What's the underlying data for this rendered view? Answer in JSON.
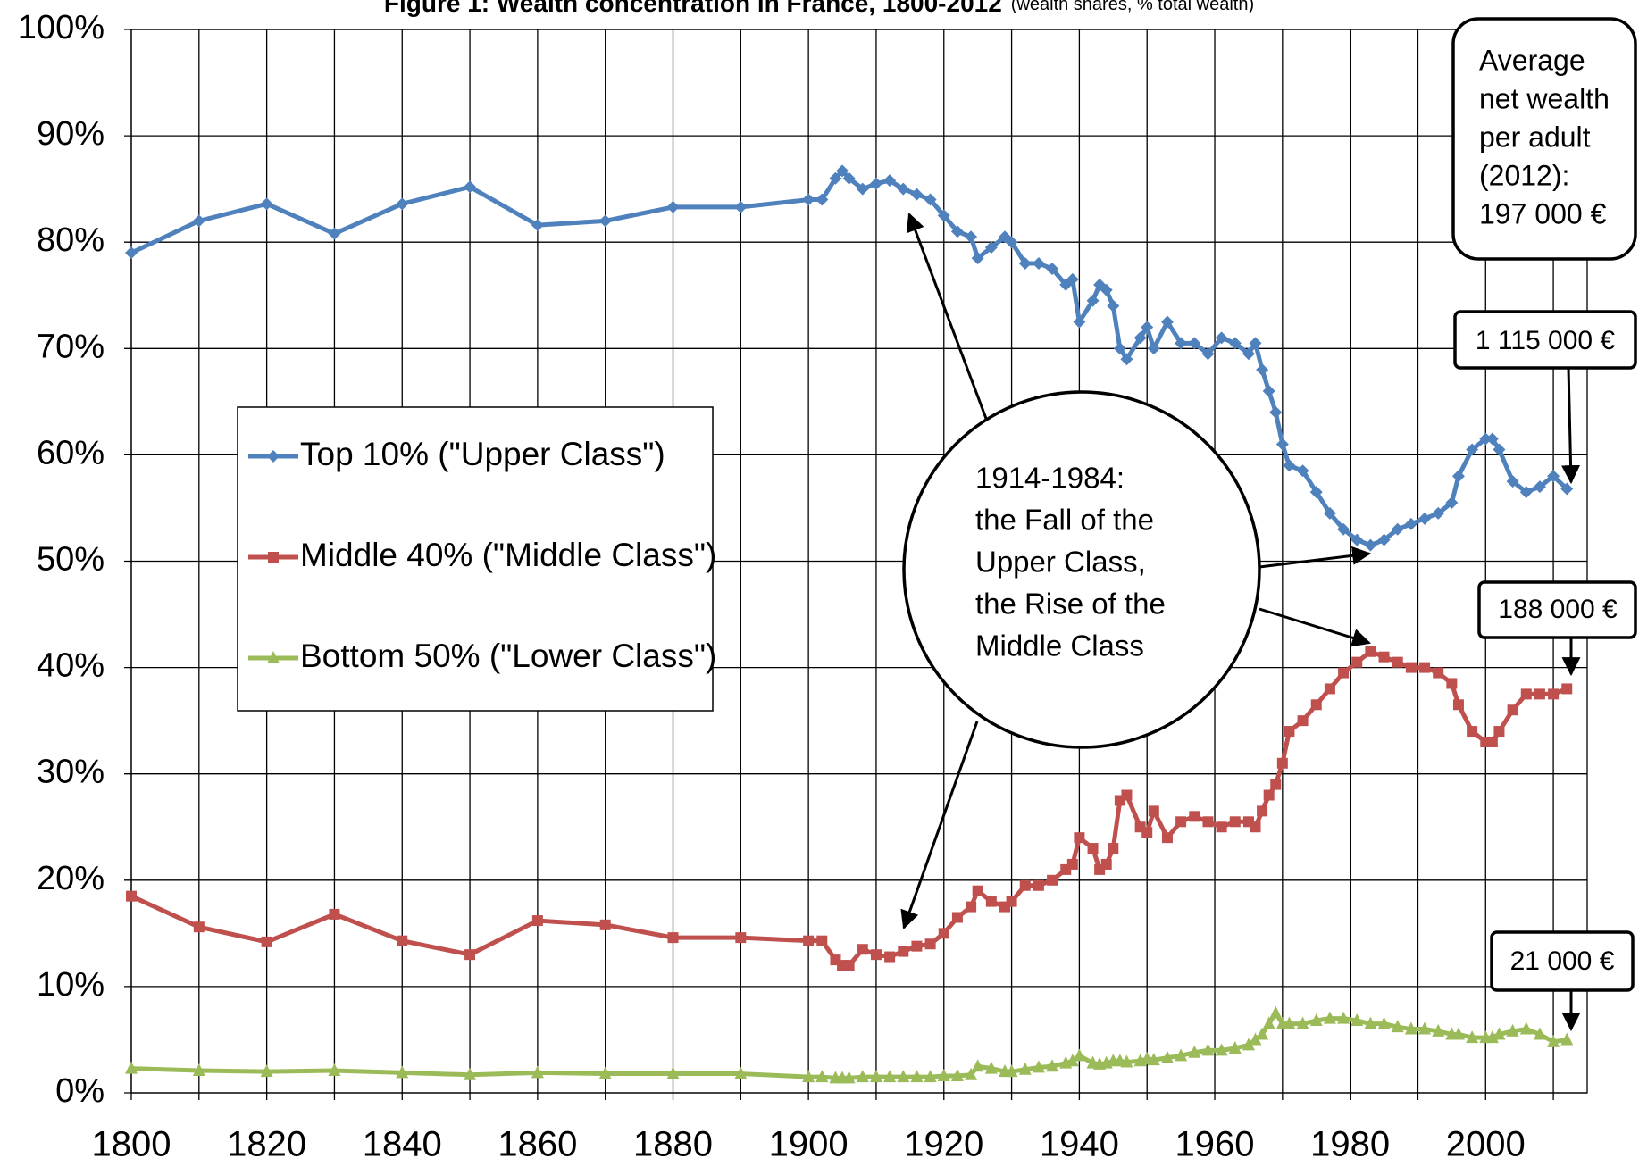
{
  "chart_data": {
    "type": "line",
    "title": "Figure 1: Wealth concentration in France, 1800-2012",
    "subtitle": "(wealth shares, % total wealth)",
    "x": [
      1800,
      1810,
      1820,
      1830,
      1840,
      1850,
      1860,
      1870,
      1880,
      1890,
      1900,
      1902,
      1904,
      1905,
      1906,
      1908,
      1910,
      1912,
      1914,
      1916,
      1918,
      1920,
      1922,
      1924,
      1925,
      1927,
      1929,
      1930,
      1932,
      1934,
      1936,
      1938,
      1939,
      1940,
      1942,
      1943,
      1944,
      1945,
      1946,
      1947,
      1949,
      1950,
      1951,
      1953,
      1955,
      1957,
      1959,
      1961,
      1963,
      1965,
      1966,
      1967,
      1968,
      1969,
      1970,
      1971,
      1973,
      1975,
      1977,
      1979,
      1981,
      1983,
      1985,
      1987,
      1989,
      1991,
      1993,
      1995,
      1996,
      1998,
      2000,
      2001,
      2002,
      2004,
      2006,
      2008,
      2010,
      2012
    ],
    "series": [
      {
        "name": "Top 10% (\"Upper Class\")",
        "color": "#4f81bd",
        "marker": "diamond",
        "values": [
          79,
          82,
          83.6,
          80.8,
          83.6,
          85.2,
          81.6,
          82,
          83.3,
          83.3,
          84,
          84,
          86,
          86.7,
          86,
          85,
          85.5,
          85.8,
          85,
          84.5,
          84,
          82.5,
          81,
          80.5,
          78.5,
          79.5,
          80.5,
          80,
          78,
          78,
          77.5,
          76,
          76.5,
          72.5,
          74.5,
          76,
          75.5,
          74,
          70,
          69,
          71,
          72,
          70,
          72.5,
          70.5,
          70.5,
          69.5,
          71,
          70.5,
          69.5,
          70.5,
          68,
          66,
          64,
          61,
          59,
          58.5,
          56.5,
          54.5,
          53,
          52,
          51.5,
          52,
          53,
          53.5,
          54,
          54.5,
          55.5,
          58,
          60.5,
          61.5,
          61.5,
          60.5,
          57.5,
          56.5,
          57,
          58,
          56.8
        ]
      },
      {
        "name": "Middle 40% (\"Middle Class\")",
        "color": "#c0504d",
        "marker": "square",
        "values": [
          18.5,
          15.6,
          14.2,
          16.8,
          14.3,
          13,
          16.2,
          15.8,
          14.6,
          14.6,
          14.3,
          14.3,
          12.5,
          12,
          12,
          13.5,
          13,
          12.8,
          13.3,
          13.8,
          14,
          15,
          16.5,
          17.5,
          19,
          18,
          17.5,
          18,
          19.5,
          19.5,
          20,
          21,
          21.5,
          24,
          23,
          21,
          21.5,
          23,
          27.5,
          28,
          25,
          24.5,
          26.5,
          24,
          25.5,
          26,
          25.5,
          25,
          25.5,
          25.5,
          25,
          26.5,
          28,
          29,
          31,
          34,
          35,
          36.5,
          38,
          39.5,
          40.5,
          41.5,
          41,
          40.5,
          40,
          40,
          39.5,
          38.5,
          36.5,
          34,
          33,
          33,
          34,
          36,
          37.5,
          37.5,
          37.5,
          38
        ]
      },
      {
        "name": "Bottom 50% (\"Lower Class\")",
        "color": "#9bbb59",
        "marker": "triangle",
        "values": [
          2.3,
          2.1,
          2,
          2.1,
          1.9,
          1.7,
          1.9,
          1.8,
          1.8,
          1.8,
          1.5,
          1.5,
          1.4,
          1.4,
          1.4,
          1.5,
          1.5,
          1.5,
          1.5,
          1.5,
          1.5,
          1.6,
          1.6,
          1.7,
          2.5,
          2.3,
          2,
          2,
          2.2,
          2.4,
          2.5,
          2.8,
          3,
          3.5,
          2.8,
          2.7,
          2.8,
          3,
          3,
          2.9,
          3,
          3.2,
          3.1,
          3.3,
          3.5,
          3.8,
          4,
          4,
          4.2,
          4.5,
          5,
          5.5,
          6.5,
          7.5,
          6.5,
          6.5,
          6.5,
          6.8,
          7,
          7,
          6.8,
          6.5,
          6.5,
          6.2,
          6,
          6,
          5.8,
          5.5,
          5.5,
          5.2,
          5.2,
          5.2,
          5.5,
          5.8,
          6,
          5.5,
          4.8,
          5
        ]
      }
    ],
    "xlim": [
      1800,
      2015
    ],
    "xticks": [
      1800,
      1820,
      1840,
      1860,
      1880,
      1900,
      1920,
      1940,
      1960,
      1980,
      2000
    ],
    "x_minor_grid": [
      1810,
      1830,
      1850,
      1870,
      1890,
      1910,
      1930,
      1950,
      1970,
      1990,
      2010
    ],
    "ylim": [
      0,
      100
    ],
    "yticks": [
      {
        "value": 0,
        "label": "0%"
      },
      {
        "value": 10,
        "label": "10%"
      },
      {
        "value": 20,
        "label": "20%"
      },
      {
        "value": 30,
        "label": "30%"
      },
      {
        "value": 40,
        "label": "40%"
      },
      {
        "value": 50,
        "label": "50%"
      },
      {
        "value": 60,
        "label": "60%"
      },
      {
        "value": 70,
        "label": "70%"
      },
      {
        "value": 80,
        "label": "80%"
      },
      {
        "value": 90,
        "label": "90%"
      },
      {
        "value": 100,
        "label": "100%"
      }
    ],
    "grid": true,
    "legend_position": "center left",
    "annotations": {
      "circle": [
        "1914-1984:",
        "the Fall of the",
        "Upper Class,",
        "the Rise of the",
        "Middle Class"
      ],
      "average_box": [
        "Average",
        "net wealth",
        "per adult",
        "(2012):",
        "197 000 €"
      ],
      "top_wealth": "1 115 000 €",
      "middle_wealth": "188 000 €",
      "bottom_wealth": "21 000 €"
    }
  }
}
